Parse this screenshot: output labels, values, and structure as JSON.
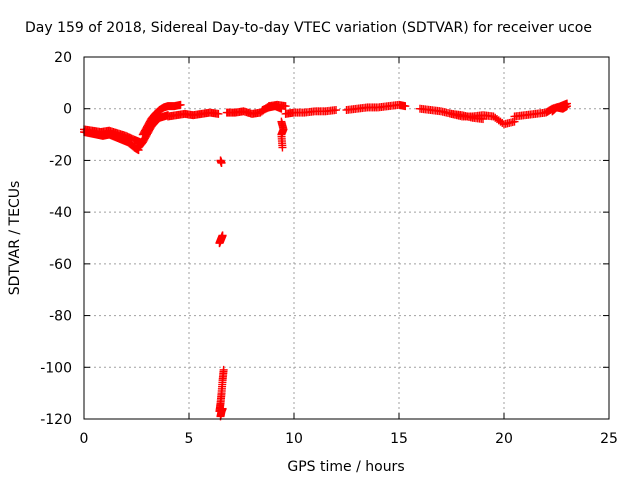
{
  "chart_data": {
    "type": "scatter",
    "title": "Day 159 of 2018, Sidereal Day-to-day VTEC variation (SDTVAR) for receiver ucoe",
    "xlabel": "GPS time / hours",
    "ylabel": "SDTVAR / TECUs",
    "xlim": [
      0,
      25
    ],
    "ylim": [
      -120,
      20
    ],
    "x_ticks": [
      0,
      5,
      10,
      15,
      20,
      25
    ],
    "y_ticks": [
      20,
      0,
      -20,
      -40,
      -60,
      -80,
      -100,
      -120
    ],
    "grid": true,
    "marker": "+",
    "color": "#ff0000",
    "series": [
      {
        "name": "SDTVAR",
        "segments": [
          {
            "x": [
              0.0,
              0.3,
              0.6,
              0.9,
              1.2,
              1.5,
              1.8,
              2.1,
              2.4,
              2.6
            ],
            "y": [
              -9,
              -9.5,
              -10,
              -10.5,
              -10,
              -11,
              -12,
              -13,
              -15,
              -16
            ]
          },
          {
            "x": [
              0.0,
              0.4,
              0.8,
              1.2,
              1.6,
              2.0,
              2.4,
              2.7
            ],
            "y": [
              -8,
              -8.5,
              -9,
              -8.5,
              -9.5,
              -10.5,
              -12,
              -13
            ]
          },
          {
            "x": [
              2.6,
              2.8,
              3.0,
              3.2,
              3.4,
              3.6,
              3.8,
              4.0
            ],
            "y": [
              -15,
              -13,
              -10,
              -7,
              -5,
              -3.5,
              -3,
              -2.5
            ]
          },
          {
            "x": [
              2.8,
              3.0,
              3.2,
              3.4,
              3.6,
              3.8,
              4.0,
              4.3,
              4.6
            ],
            "y": [
              -10,
              -7,
              -4,
              -2,
              -0.5,
              0.5,
              1,
              1,
              1.5
            ]
          },
          {
            "x": [
              4.0,
              4.4,
              4.8,
              5.2,
              5.6,
              6.0,
              6.4
            ],
            "y": [
              -3,
              -2.5,
              -2,
              -2.5,
              -2,
              -1.5,
              -2
            ]
          },
          {
            "x": [
              6.5,
              6.55
            ],
            "y": [
              -20,
              -21
            ]
          },
          {
            "x": [
              6.45,
              6.5,
              6.55,
              6.6
            ],
            "y": [
              -52,
              -51,
              -50,
              -49
            ]
          },
          {
            "x": [
              6.45,
              6.5,
              6.55,
              6.6,
              6.65
            ],
            "y": [
              -117,
              -114,
              -110,
              -105,
              -101
            ]
          },
          {
            "x": [
              6.5,
              6.55,
              6.6
            ],
            "y": [
              -119,
              -117,
              -116
            ]
          },
          {
            "x": [
              6.8,
              7.2,
              7.6,
              8.0,
              8.4,
              8.8,
              9.2,
              9.6
            ],
            "y": [
              -1.5,
              -1.5,
              -1,
              -2,
              -1.5,
              1,
              1.5,
              1
            ]
          },
          {
            "x": [
              8.5,
              8.8,
              9.1,
              9.4
            ],
            "y": [
              -0.5,
              0.5,
              1,
              0
            ]
          },
          {
            "x": [
              9.4,
              9.5,
              9.4,
              9.45
            ],
            "y": [
              -5,
              -8,
              -10,
              -15
            ]
          },
          {
            "x": [
              9.6,
              10.0,
              10.5,
              11.0,
              11.5,
              12.0
            ],
            "y": [
              -2,
              -1.5,
              -1.5,
              -1,
              -1,
              -0.5
            ]
          },
          {
            "x": [
              12.5,
              13.0,
              13.5,
              14.0,
              14.5,
              15.0,
              15.3
            ],
            "y": [
              -0.5,
              0,
              0.5,
              0.5,
              1,
              1.5,
              1
            ]
          },
          {
            "x": [
              16.0,
              16.5,
              17.0,
              17.5,
              18.0,
              18.5,
              19.0
            ],
            "y": [
              0,
              -0.5,
              -1,
              -2,
              -2.5,
              -3.5,
              -4
            ]
          },
          {
            "x": [
              17.5,
              18.0,
              18.5,
              19.0,
              19.5,
              20.0,
              20.5
            ],
            "y": [
              -2,
              -3,
              -3,
              -2.5,
              -3,
              -6,
              -5
            ]
          },
          {
            "x": [
              20.5,
              21.0,
              21.5,
              22.0,
              22.3,
              22.7,
              23.0
            ],
            "y": [
              -3,
              -2.5,
              -2,
              -1.5,
              0,
              1,
              2
            ]
          },
          {
            "x": [
              22.3,
              22.5,
              22.8,
              23.0
            ],
            "y": [
              -1,
              0.5,
              0,
              1
            ]
          }
        ]
      }
    ]
  }
}
